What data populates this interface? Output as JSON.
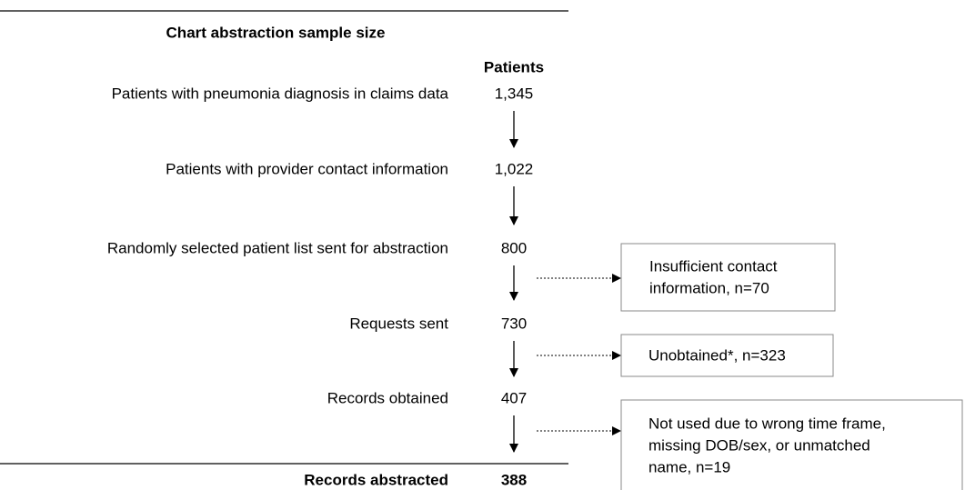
{
  "title": "Chart abstraction sample size",
  "column_header": "Patients",
  "steps": [
    {
      "label": "Patients with pneumonia diagnosis in claims data",
      "count": "1,345"
    },
    {
      "label": "Patients with provider contact information",
      "count": "1,022"
    },
    {
      "label": "Randomly selected patient list sent for abstraction",
      "count": "800"
    },
    {
      "label": "Requests sent",
      "count": "730"
    },
    {
      "label": "Records obtained",
      "count": "407"
    },
    {
      "label": "Records abstracted",
      "count": "388"
    }
  ],
  "exclusions": [
    {
      "lines": [
        "Insufficient contact",
        "information, n=70"
      ]
    },
    {
      "lines": [
        "Unobtained*, n=323"
      ]
    },
    {
      "lines": [
        "Not used due to wrong time frame,",
        "missing DOB/sex, or unmatched",
        "name, n=19"
      ]
    }
  ]
}
